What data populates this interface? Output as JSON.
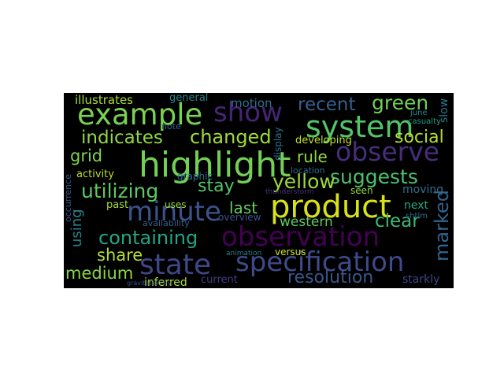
{
  "words": [
    {
      "text": "highlight",
      "color": "#73d055"
    },
    {
      "text": "observation",
      "color": "#440154"
    },
    {
      "text": "specification",
      "color": "#3e4a89"
    },
    {
      "text": "product",
      "color": "#d8e219"
    },
    {
      "text": "example",
      "color": "#7ad151"
    },
    {
      "text": "system",
      "color": "#52c569"
    },
    {
      "text": "minute",
      "color": "#3b528b"
    },
    {
      "text": "state",
      "color": "#3f4788"
    },
    {
      "text": "show",
      "color": "#482475"
    },
    {
      "text": "observe",
      "color": "#472d7b"
    },
    {
      "text": "utilizing",
      "color": "#5ec962"
    },
    {
      "text": "containing",
      "color": "#21a685"
    },
    {
      "text": "changed",
      "color": "#a0da39"
    },
    {
      "text": "indicates",
      "color": "#8fd744"
    },
    {
      "text": "green",
      "color": "#70cf57"
    },
    {
      "text": "suggests",
      "color": "#4ac16d"
    },
    {
      "text": "yellow",
      "color": "#9bd93c"
    },
    {
      "text": "recent",
      "color": "#35608d"
    },
    {
      "text": "resolution",
      "color": "#38588c"
    },
    {
      "text": "marked",
      "color": "#32648e"
    },
    {
      "text": "social",
      "color": "#b5de2b"
    },
    {
      "text": "clear",
      "color": "#3aba76"
    },
    {
      "text": "medium",
      "color": "#8bd646"
    },
    {
      "text": "share",
      "color": "#b8de29"
    },
    {
      "text": "stay",
      "color": "#52c569"
    },
    {
      "text": "last",
      "color": "#65cb5e"
    },
    {
      "text": "rule",
      "color": "#93d741"
    },
    {
      "text": "grid",
      "color": "#7fd34e"
    },
    {
      "text": "western",
      "color": "#5ec962"
    },
    {
      "text": "illustrates",
      "color": "#a8db34"
    },
    {
      "text": "motion",
      "color": "#2c728e"
    },
    {
      "text": "general",
      "color": "#24878e"
    },
    {
      "text": "inferred",
      "color": "#addc30"
    },
    {
      "text": "current",
      "color": "#433e85"
    },
    {
      "text": "starkly",
      "color": "#404688"
    },
    {
      "text": "using",
      "color": "#25858e"
    },
    {
      "text": "slow",
      "color": "#2a788e"
    },
    {
      "text": "next",
      "color": "#22a884"
    },
    {
      "text": "moving",
      "color": "#2d708e"
    },
    {
      "text": "developing",
      "color": "#c2df23"
    },
    {
      "text": "versus",
      "color": "#d2e21b"
    },
    {
      "text": "past",
      "color": "#a5db36"
    },
    {
      "text": "uses",
      "color": "#a2da37"
    },
    {
      "text": "seen",
      "color": "#99d83d"
    },
    {
      "text": "note",
      "color": "#33638d"
    },
    {
      "text": "activity",
      "color": "#bddf26"
    },
    {
      "text": "graphic",
      "color": "#2e6e8e"
    },
    {
      "text": "display",
      "color": "#2d718e"
    },
    {
      "text": "location",
      "color": "#2f6c8e"
    },
    {
      "text": "availability",
      "color": "#355f8d"
    },
    {
      "text": "overview",
      "color": "#3a548c"
    },
    {
      "text": "occurrence",
      "color": "#375a8c"
    },
    {
      "text": "shtlm",
      "color": "#2e6f8e"
    },
    {
      "text": "casualty",
      "color": "#1f9e89"
    },
    {
      "text": "june",
      "color": "#23898e"
    },
    {
      "text": "thunderstorm",
      "color": "#46337f"
    },
    {
      "text": "animation",
      "color": "#26828e"
    },
    {
      "text": "gravitationary",
      "color": "#3b518b"
    }
  ]
}
